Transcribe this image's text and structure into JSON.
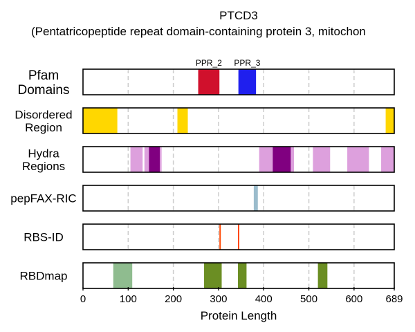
{
  "chart_data": {
    "type": "bar",
    "title": "PTCD3",
    "subtitle": "(Pentatricopeptide repeat domain-containing protein 3, mitochon",
    "xlabel": "Protein Length",
    "xlim": [
      0,
      689
    ],
    "xticks": [
      0,
      100,
      200,
      300,
      400,
      500,
      600,
      689
    ],
    "grid": "vertical dashed",
    "tracks": [
      {
        "label": "Pfam\nDomains",
        "segments": [
          {
            "start": 255,
            "end": 302,
            "color": "#d0102c",
            "label": "PPR_2"
          },
          {
            "start": 344,
            "end": 383,
            "color": "#1f1fee",
            "label": "PPR_3"
          }
        ]
      },
      {
        "label": "Disordered\nRegion",
        "segments": [
          {
            "start": 0,
            "end": 76,
            "color": "#ffd700"
          },
          {
            "start": 209,
            "end": 232,
            "color": "#ffd700"
          },
          {
            "start": 670,
            "end": 689,
            "color": "#ffd700"
          }
        ]
      },
      {
        "label": "Hydra\nRegions",
        "segments": [
          {
            "start": 105,
            "end": 132,
            "color": "#dda0dd"
          },
          {
            "start": 136,
            "end": 146,
            "color": "#dda0dd"
          },
          {
            "start": 146,
            "end": 170,
            "color": "#800080"
          },
          {
            "start": 170,
            "end": 174,
            "color": "#dda0dd"
          },
          {
            "start": 390,
            "end": 420,
            "color": "#dda0dd"
          },
          {
            "start": 420,
            "end": 460,
            "color": "#800080"
          },
          {
            "start": 460,
            "end": 467,
            "color": "#dda0dd"
          },
          {
            "start": 509,
            "end": 547,
            "color": "#dda0dd"
          },
          {
            "start": 585,
            "end": 633,
            "color": "#dda0dd"
          },
          {
            "start": 660,
            "end": 689,
            "color": "#dda0dd"
          }
        ]
      },
      {
        "label": "pepFAX-RIC",
        "segments": [
          {
            "start": 378,
            "end": 387,
            "color": "#9bbccc"
          }
        ]
      },
      {
        "label": "RBS-ID",
        "segments": [
          {
            "start": 302,
            "end": 305,
            "color": "#ff4500"
          },
          {
            "start": 343,
            "end": 346,
            "color": "#ff4500"
          }
        ]
      },
      {
        "label": "RBDmap",
        "segments": [
          {
            "start": 67,
            "end": 109,
            "color": "#8fbc8f"
          },
          {
            "start": 268,
            "end": 307,
            "color": "#6b8e23"
          },
          {
            "start": 343,
            "end": 362,
            "color": "#6b8e23"
          },
          {
            "start": 520,
            "end": 541,
            "color": "#6b8e23"
          }
        ]
      }
    ]
  }
}
